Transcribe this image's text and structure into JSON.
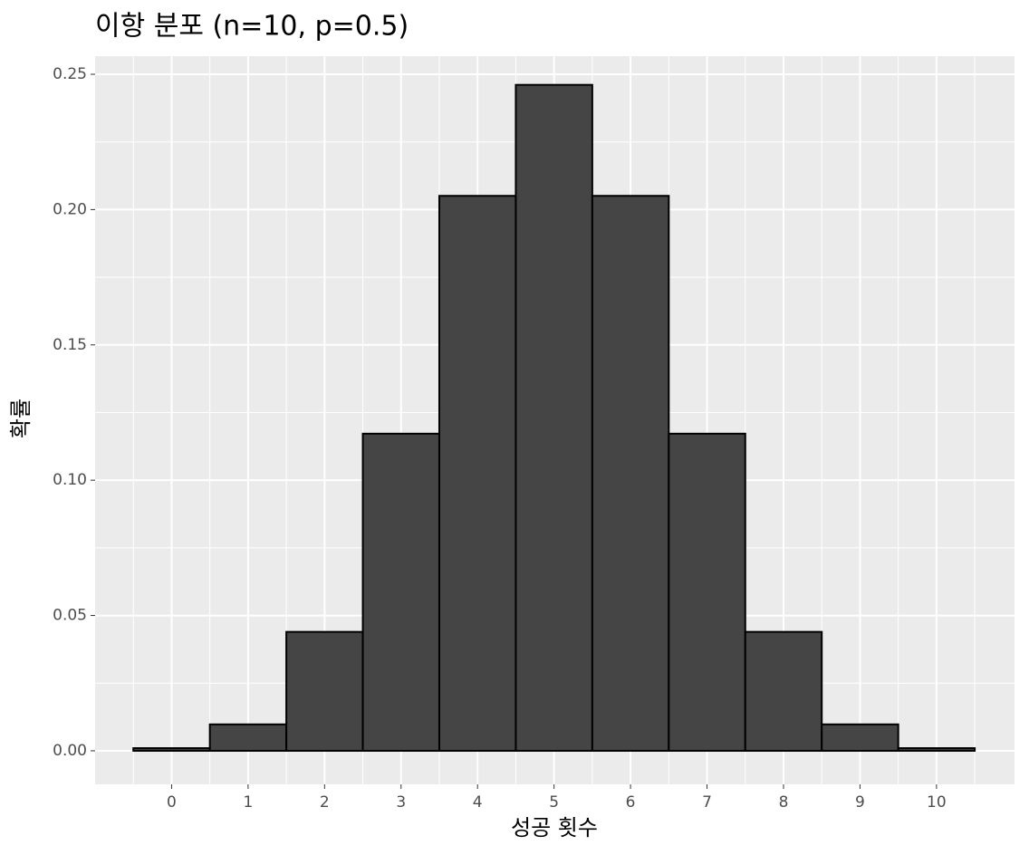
{
  "chart_data": {
    "type": "bar",
    "title": "이항 분포 (n=10, p=0.5)",
    "x_label": "성공 횟수",
    "y_label": "확률",
    "x": [
      0,
      1,
      2,
      3,
      4,
      5,
      6,
      7,
      8,
      9,
      10
    ],
    "values": [
      0.000977,
      0.009766,
      0.043945,
      0.117188,
      0.205078,
      0.246094,
      0.205078,
      0.117188,
      0.043945,
      0.009766,
      0.000977
    ],
    "color": "#454545",
    "xlim": [
      -1.0,
      11.02
    ],
    "xticks": [
      0,
      1,
      2,
      3,
      4,
      5,
      6,
      7,
      8,
      9,
      10
    ],
    "ylim": [
      -0.0124,
      0.2567
    ],
    "yticks": [
      {
        "value": 0,
        "label": "0.00"
      },
      {
        "value": 0.05,
        "label": "0.05"
      },
      {
        "value": 0.1,
        "label": "0.10"
      },
      {
        "value": 0.15,
        "label": "0.15"
      },
      {
        "value": 0.2,
        "label": "0.20"
      },
      {
        "value": 0.25,
        "label": "0.25"
      }
    ],
    "grid": true
  }
}
